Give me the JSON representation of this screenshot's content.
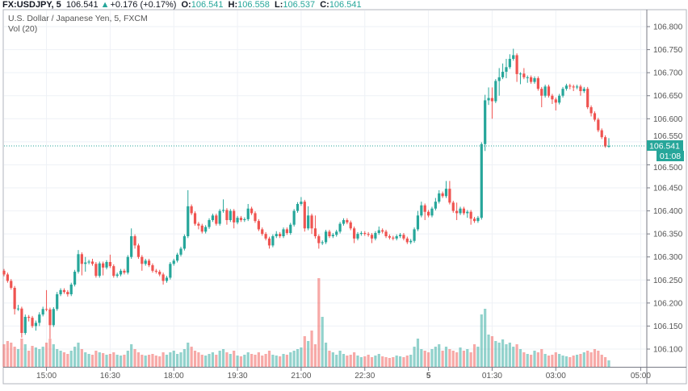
{
  "header": {
    "symbol": "FX:USDJPY, 5",
    "last": "106.541",
    "change_icon": "triangle-up-icon",
    "change": "+0.176 (+0.17%)",
    "o_label": "O:",
    "o": "106.541",
    "h_label": "H:",
    "h": "106.558",
    "l_label": "L:",
    "l": "106.537",
    "c_label": "C:",
    "c": "106.541"
  },
  "legend": {
    "title": "U.S. Dollar / Japanese Yen, 5, FXCM",
    "volume": "Vol (20)"
  },
  "colors": {
    "up": "#26a69a",
    "down": "#ef5350",
    "grid": "#eef1f6",
    "axis": "#787b86"
  },
  "chart_data": {
    "type": "candlestick",
    "title": "U.S. Dollar / Japanese Yen, 5, FXCM",
    "interval": "5",
    "grid": true,
    "ylim": [
      106.06,
      106.83
    ],
    "y_ticks": [
      "106.800",
      "106.750",
      "106.700",
      "106.650",
      "106.600",
      "106.550",
      "106.500",
      "106.450",
      "106.400",
      "106.350",
      "106.300",
      "106.250",
      "106.200",
      "106.150",
      "106.100"
    ],
    "x_ticks": [
      "15:00",
      "16:30",
      "18:00",
      "19:30",
      "21:00",
      "22:30",
      "5",
      "01:30",
      "03:00",
      "05:00"
    ],
    "last_price_label": "106.541",
    "countdown": "01:08",
    "ohlc": [
      [
        106.27,
        106.274,
        106.258,
        106.262
      ],
      [
        106.262,
        106.266,
        106.244,
        106.248
      ],
      [
        106.248,
        106.252,
        106.229,
        106.233
      ],
      [
        106.233,
        106.237,
        106.175,
        106.187
      ],
      [
        106.187,
        106.196,
        106.183,
        106.188
      ],
      [
        106.188,
        106.192,
        106.125,
        106.135
      ],
      [
        106.135,
        106.175,
        106.131,
        106.17
      ],
      [
        106.17,
        106.174,
        106.16,
        106.168
      ],
      [
        106.168,
        106.172,
        106.146,
        106.15
      ],
      [
        106.15,
        106.162,
        106.14,
        106.157
      ],
      [
        106.157,
        106.18,
        106.15,
        106.175
      ],
      [
        106.175,
        106.192,
        106.171,
        106.187
      ],
      [
        106.187,
        106.228,
        106.182,
        106.186
      ],
      [
        106.186,
        106.19,
        106.123,
        106.152
      ],
      [
        106.152,
        106.191,
        106.148,
        106.187
      ],
      [
        106.187,
        106.224,
        106.183,
        106.219
      ],
      [
        106.219,
        106.232,
        106.215,
        106.228
      ],
      [
        106.228,
        106.232,
        106.22,
        106.224
      ],
      [
        106.224,
        106.228,
        106.214,
        106.219
      ],
      [
        106.219,
        106.244,
        106.215,
        106.24
      ],
      [
        106.24,
        106.272,
        106.236,
        106.268
      ],
      [
        106.268,
        106.315,
        106.264,
        106.306
      ],
      [
        106.306,
        106.31,
        106.26,
        106.285
      ],
      [
        106.285,
        106.3,
        106.268,
        106.288
      ],
      [
        106.288,
        106.294,
        106.284,
        106.29
      ],
      [
        106.29,
        106.296,
        106.281,
        106.285
      ],
      [
        106.285,
        106.289,
        106.255,
        106.259
      ],
      [
        106.259,
        106.29,
        106.255,
        106.286
      ],
      [
        106.286,
        106.29,
        106.26,
        106.277
      ],
      [
        106.277,
        106.293,
        106.273,
        106.289
      ],
      [
        106.289,
        106.305,
        106.276,
        106.28
      ],
      [
        106.28,
        106.284,
        106.255,
        106.259
      ],
      [
        106.259,
        106.266,
        106.255,
        106.262
      ],
      [
        106.262,
        106.274,
        106.258,
        106.27
      ],
      [
        106.27,
        106.274,
        106.262,
        106.266
      ],
      [
        106.266,
        106.304,
        106.262,
        106.3
      ],
      [
        106.3,
        106.362,
        106.296,
        106.345
      ],
      [
        106.345,
        106.349,
        106.318,
        106.325
      ],
      [
        106.325,
        106.329,
        106.296,
        106.3
      ],
      [
        106.3,
        106.304,
        106.27,
        106.285
      ],
      [
        106.285,
        106.296,
        106.281,
        106.292
      ],
      [
        106.292,
        106.296,
        106.278,
        106.282
      ],
      [
        106.282,
        106.286,
        106.266,
        106.27
      ],
      [
        106.27,
        106.274,
        106.264,
        106.268
      ],
      [
        106.268,
        106.272,
        106.258,
        106.262
      ],
      [
        106.262,
        106.266,
        106.24,
        106.248
      ],
      [
        106.248,
        106.259,
        106.244,
        106.255
      ],
      [
        106.255,
        106.289,
        106.251,
        106.285
      ],
      [
        106.285,
        106.296,
        106.281,
        106.292
      ],
      [
        106.292,
        106.309,
        106.288,
        106.305
      ],
      [
        106.305,
        106.322,
        106.301,
        106.318
      ],
      [
        106.318,
        106.349,
        106.314,
        106.345
      ],
      [
        106.345,
        106.445,
        106.341,
        106.41
      ],
      [
        106.41,
        106.414,
        106.391,
        106.395
      ],
      [
        106.395,
        106.399,
        106.368,
        106.372
      ],
      [
        106.372,
        106.376,
        106.36,
        106.368
      ],
      [
        106.368,
        106.372,
        106.351,
        106.355
      ],
      [
        106.355,
        106.369,
        106.351,
        106.365
      ],
      [
        106.365,
        106.384,
        106.361,
        106.38
      ],
      [
        106.38,
        106.394,
        106.376,
        106.39
      ],
      [
        106.39,
        106.394,
        106.368,
        106.372
      ],
      [
        106.372,
        106.404,
        106.368,
        106.4
      ],
      [
        106.4,
        106.425,
        106.396,
        106.402
      ],
      [
        106.402,
        106.406,
        106.37,
        106.38
      ],
      [
        106.38,
        106.404,
        106.376,
        106.4
      ],
      [
        106.4,
        106.404,
        106.362,
        106.375
      ],
      [
        106.375,
        106.389,
        106.371,
        106.385
      ],
      [
        106.385,
        106.389,
        106.376,
        106.38
      ],
      [
        106.38,
        106.386,
        106.376,
        106.382
      ],
      [
        106.382,
        106.415,
        106.378,
        106.405
      ],
      [
        106.405,
        106.409,
        106.391,
        106.395
      ],
      [
        106.395,
        106.399,
        106.374,
        106.378
      ],
      [
        106.378,
        106.382,
        106.356,
        106.36
      ],
      [
        106.36,
        106.364,
        106.346,
        106.35
      ],
      [
        106.35,
        106.354,
        106.336,
        106.34
      ],
      [
        106.34,
        106.344,
        106.318,
        106.325
      ],
      [
        106.325,
        106.349,
        106.321,
        106.345
      ],
      [
        106.345,
        106.356,
        106.341,
        106.35
      ],
      [
        106.35,
        106.354,
        106.341,
        106.345
      ],
      [
        106.345,
        106.364,
        106.341,
        106.36
      ],
      [
        106.36,
        106.364,
        106.348,
        106.352
      ],
      [
        106.352,
        106.374,
        106.348,
        106.37
      ],
      [
        106.37,
        106.404,
        106.366,
        106.4
      ],
      [
        106.4,
        106.419,
        106.396,
        106.415
      ],
      [
        106.415,
        106.43,
        106.411,
        106.42
      ],
      [
        106.42,
        106.424,
        106.355,
        106.362
      ],
      [
        106.362,
        106.41,
        106.358,
        106.39
      ],
      [
        106.39,
        106.394,
        106.35,
        106.362
      ],
      [
        106.362,
        106.39,
        106.34,
        106.345
      ],
      [
        106.345,
        106.349,
        106.318,
        106.33
      ],
      [
        106.33,
        106.336,
        106.326,
        106.332
      ],
      [
        106.332,
        106.359,
        106.328,
        106.355
      ],
      [
        106.355,
        106.359,
        106.341,
        106.345
      ],
      [
        106.345,
        106.352,
        106.341,
        106.348
      ],
      [
        106.348,
        106.359,
        106.344,
        106.355
      ],
      [
        106.355,
        106.376,
        106.351,
        106.372
      ],
      [
        106.372,
        106.384,
        106.368,
        106.38
      ],
      [
        106.38,
        106.384,
        106.371,
        106.375
      ],
      [
        106.375,
        106.379,
        106.358,
        106.362
      ],
      [
        106.362,
        106.366,
        106.33,
        106.34
      ],
      [
        106.34,
        106.354,
        106.336,
        106.35
      ],
      [
        106.35,
        106.356,
        106.346,
        106.352
      ],
      [
        106.352,
        106.356,
        106.346,
        106.35
      ],
      [
        106.35,
        106.354,
        106.344,
        106.348
      ],
      [
        106.348,
        106.352,
        106.33,
        106.34
      ],
      [
        106.34,
        106.356,
        106.336,
        106.352
      ],
      [
        106.352,
        106.366,
        106.348,
        106.358
      ],
      [
        106.358,
        106.362,
        106.351,
        106.355
      ],
      [
        106.355,
        106.359,
        106.341,
        106.345
      ],
      [
        106.345,
        106.349,
        106.338,
        106.342
      ],
      [
        106.342,
        106.346,
        106.336,
        106.34
      ],
      [
        106.34,
        106.349,
        106.336,
        106.345
      ],
      [
        106.345,
        106.352,
        106.341,
        106.348
      ],
      [
        106.348,
        106.352,
        106.336,
        106.34
      ],
      [
        106.34,
        106.344,
        106.328,
        106.332
      ],
      [
        106.332,
        106.339,
        106.328,
        106.335
      ],
      [
        106.335,
        106.364,
        106.331,
        106.36
      ],
      [
        106.36,
        106.4,
        106.356,
        106.39
      ],
      [
        106.39,
        106.42,
        106.386,
        106.412
      ],
      [
        106.412,
        106.416,
        106.38,
        106.398
      ],
      [
        106.398,
        106.402,
        106.386,
        106.39
      ],
      [
        106.39,
        106.409,
        106.386,
        106.405
      ],
      [
        106.405,
        106.428,
        106.401,
        106.42
      ],
      [
        106.42,
        106.445,
        106.416,
        106.438
      ],
      [
        106.438,
        106.442,
        106.428,
        106.432
      ],
      [
        106.432,
        106.465,
        106.428,
        106.448
      ],
      [
        106.448,
        106.465,
        106.414,
        106.418
      ],
      [
        106.418,
        106.422,
        106.396,
        106.4
      ],
      [
        106.4,
        106.418,
        106.38,
        106.395
      ],
      [
        106.395,
        106.409,
        106.391,
        106.405
      ],
      [
        106.405,
        106.409,
        106.391,
        106.395
      ],
      [
        106.395,
        106.402,
        106.385,
        106.398
      ],
      [
        106.398,
        106.402,
        106.37,
        106.383
      ],
      [
        106.383,
        106.387,
        106.374,
        106.378
      ],
      [
        106.378,
        106.389,
        106.374,
        106.385
      ],
      [
        106.385,
        106.549,
        106.381,
        106.545
      ],
      [
        106.545,
        106.652,
        106.53,
        106.64
      ],
      [
        106.64,
        106.668,
        106.63,
        106.645
      ],
      [
        106.645,
        106.668,
        106.6,
        106.638
      ],
      [
        106.638,
        106.686,
        106.634,
        106.682
      ],
      [
        106.682,
        106.71,
        106.65,
        106.69
      ],
      [
        106.69,
        106.72,
        106.686,
        106.702
      ],
      [
        106.702,
        106.73,
        106.688,
        106.712
      ],
      [
        106.712,
        106.74,
        106.708,
        106.73
      ],
      [
        106.73,
        106.752,
        106.726,
        106.738
      ],
      [
        106.738,
        106.742,
        106.68,
        106.697
      ],
      [
        106.697,
        106.701,
        106.675,
        106.698
      ],
      [
        106.698,
        106.71,
        106.686,
        106.69
      ],
      [
        106.69,
        106.694,
        106.678,
        106.69
      ],
      [
        106.69,
        106.694,
        106.676,
        106.68
      ],
      [
        106.68,
        106.692,
        106.676,
        106.688
      ],
      [
        106.688,
        106.692,
        106.661,
        106.665
      ],
      [
        106.665,
        106.669,
        106.625,
        106.65
      ],
      [
        106.65,
        106.674,
        106.646,
        106.67
      ],
      [
        106.67,
        106.674,
        106.646,
        106.65
      ],
      [
        106.65,
        106.654,
        106.632,
        106.642
      ],
      [
        106.642,
        106.646,
        106.618,
        106.635
      ],
      [
        106.635,
        106.654,
        106.631,
        106.65
      ],
      [
        106.65,
        106.669,
        106.646,
        106.665
      ],
      [
        106.665,
        106.676,
        106.661,
        106.672
      ],
      [
        106.672,
        106.676,
        106.664,
        106.67
      ],
      [
        106.67,
        106.674,
        106.66,
        106.668
      ],
      [
        106.668,
        106.674,
        106.664,
        106.67
      ],
      [
        106.67,
        106.674,
        106.65,
        106.66
      ],
      [
        106.66,
        106.669,
        106.656,
        106.665
      ],
      [
        106.665,
        106.669,
        106.621,
        106.625
      ],
      [
        106.625,
        106.629,
        106.605,
        106.612
      ],
      [
        106.612,
        106.616,
        106.594,
        106.598
      ],
      [
        106.598,
        106.602,
        106.571,
        106.575
      ],
      [
        106.575,
        106.579,
        106.556,
        106.56
      ],
      [
        106.56,
        106.564,
        106.537,
        106.54
      ],
      [
        106.541,
        106.558,
        106.537,
        106.541
      ]
    ],
    "volume": [
      28,
      32,
      30,
      25,
      22,
      35,
      28,
      20,
      26,
      24,
      22,
      25,
      30,
      35,
      28,
      22,
      20,
      18,
      16,
      20,
      25,
      30,
      22,
      18,
      16,
      15,
      20,
      18,
      17,
      15,
      16,
      18,
      15,
      14,
      15,
      20,
      28,
      22,
      18,
      15,
      14,
      15,
      16,
      14,
      13,
      18,
      15,
      18,
      20,
      16,
      18,
      22,
      30,
      25,
      20,
      18,
      15,
      14,
      16,
      18,
      15,
      20,
      22,
      18,
      16,
      20,
      14,
      13,
      15,
      18,
      16,
      15,
      18,
      14,
      16,
      20,
      15,
      14,
      13,
      16,
      15,
      18,
      20,
      22,
      24,
      38,
      32,
      45,
      28,
      110,
      62,
      30,
      20,
      18,
      15,
      20,
      16,
      14,
      15,
      18,
      14,
      12,
      13,
      15,
      12,
      14,
      16,
      13,
      12,
      11,
      12,
      14,
      13,
      12,
      14,
      15,
      25,
      35,
      22,
      20,
      18,
      22,
      25,
      28,
      20,
      25,
      22,
      20,
      18,
      24,
      20,
      22,
      18,
      28,
      25,
      65,
      72,
      40,
      38,
      32,
      30,
      34,
      28,
      30,
      25,
      28,
      22,
      18,
      16,
      15,
      20,
      18,
      22,
      16,
      14,
      15,
      18,
      16,
      14,
      13,
      12,
      14,
      15,
      16,
      18,
      20,
      18,
      22,
      20,
      15,
      12,
      8
    ]
  }
}
